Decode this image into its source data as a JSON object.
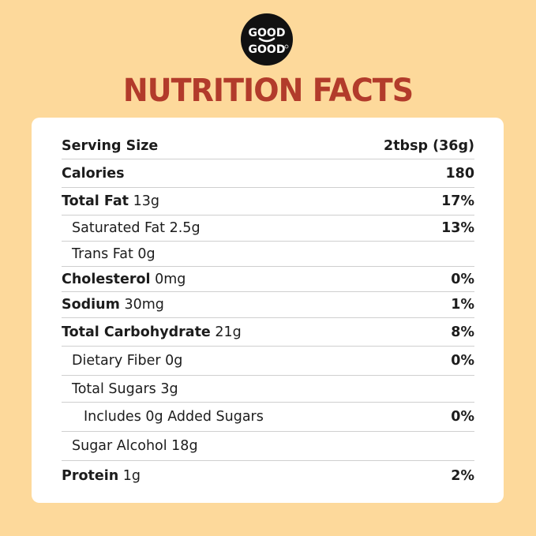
{
  "brand": {
    "logo_text_top": "GOOD",
    "logo_text_bottom": "GOOD"
  },
  "title": "NUTRITION FACTS",
  "colors": {
    "background": "#fdd99b",
    "title": "#b23b2b",
    "panel": "#ffffff",
    "logo": "#111111"
  },
  "rows": [
    {
      "label": "Serving Size",
      "amount": "",
      "value": "2tbsp (36g)"
    },
    {
      "label": "Calories",
      "amount": "",
      "value": "180"
    },
    {
      "label": "Total Fat",
      "amount": "13g",
      "value": "17%"
    },
    {
      "label": "Saturated Fat 2.5g",
      "amount": "",
      "value": "13%"
    },
    {
      "label": "Trans Fat 0g",
      "amount": "",
      "value": ""
    },
    {
      "label": "Cholesterol",
      "amount": "0mg",
      "value": "0%"
    },
    {
      "label": "Sodium",
      "amount": "30mg",
      "value": "1%"
    },
    {
      "label": "Total Carbohydrate",
      "amount": "21g",
      "value": "8%"
    },
    {
      "label": "Dietary Fiber 0g",
      "amount": "",
      "value": "0%"
    },
    {
      "label": "Total Sugars 3g",
      "amount": "",
      "value": ""
    },
    {
      "label": "Includes 0g Added Sugars",
      "amount": "",
      "value": "0%"
    },
    {
      "label": "Sugar Alcohol 18g",
      "amount": "",
      "value": ""
    },
    {
      "label": "Protein",
      "amount": "1g",
      "value": "2%"
    }
  ]
}
